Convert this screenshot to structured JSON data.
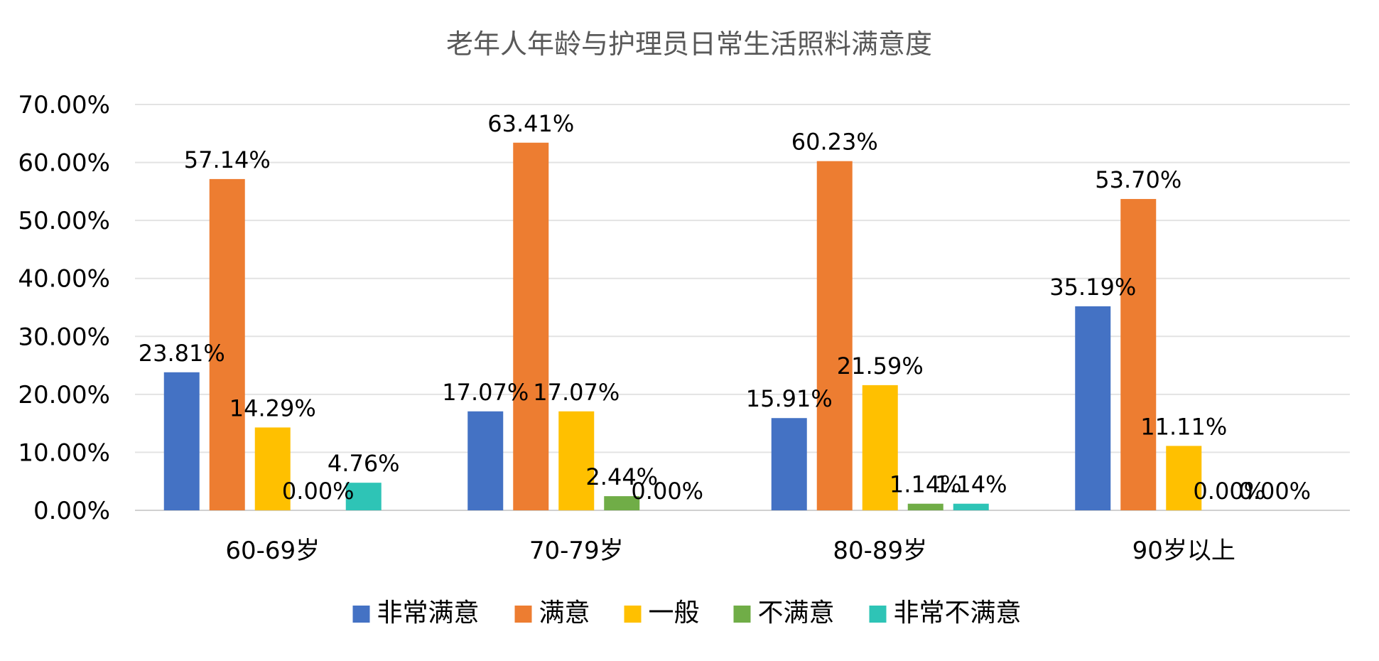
{
  "chart_data": {
    "type": "bar",
    "title": "老年人年龄与护理员日常生活照料满意度",
    "categories": [
      "60-69岁",
      "70-79岁",
      "80-89岁",
      "90岁以上"
    ],
    "series": [
      {
        "name": "非常满意",
        "color": "#4472C4",
        "values": [
          23.81,
          17.07,
          15.91,
          35.19
        ]
      },
      {
        "name": "满意",
        "color": "#ED7D31",
        "values": [
          57.14,
          63.41,
          60.23,
          53.7
        ]
      },
      {
        "name": "一般",
        "color": "#FFC000",
        "values": [
          14.29,
          17.07,
          21.59,
          11.11
        ]
      },
      {
        "name": "不满意",
        "color": "#70AD47",
        "values": [
          0.0,
          2.44,
          1.14,
          0.0
        ]
      },
      {
        "name": "非常不满意",
        "color": "#2EC4B6",
        "values": [
          4.76,
          0.0,
          1.14,
          0.0
        ]
      }
    ],
    "yticks": [
      "0.00%",
      "10.00%",
      "20.00%",
      "30.00%",
      "40.00%",
      "50.00%",
      "60.00%",
      "70.00%"
    ],
    "ylim": [
      0,
      70
    ],
    "grid": true,
    "legend_position": "bottom",
    "xlabel": "",
    "ylabel": ""
  }
}
